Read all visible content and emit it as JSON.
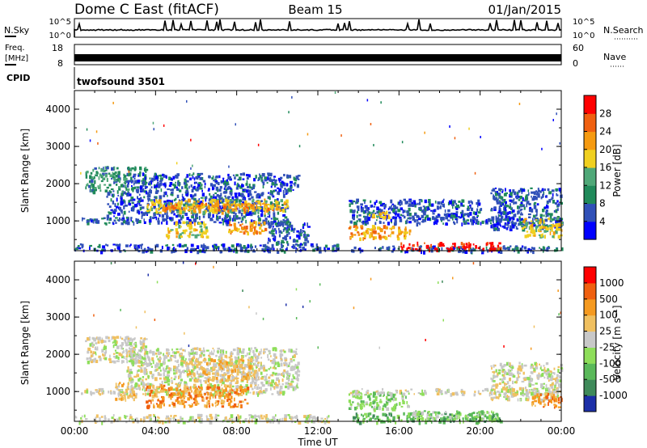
{
  "header": {
    "station": "Dome C East (fitACF)",
    "beam": "Beam 15",
    "date": "01/Jan/2015"
  },
  "strips": {
    "nsky": {
      "label": "N.Sky",
      "ticks": [
        "10^5",
        "10^0"
      ]
    },
    "nsearch": {
      "label": "N.Search",
      "ticks": [
        "10^5",
        "10^0"
      ]
    },
    "freq": {
      "label_line1": "Freq.",
      "label_line2": "[MHz]",
      "ticks": [
        "18",
        "8"
      ]
    },
    "nave": {
      "label": "Nave",
      "ticks": [
        "60",
        "0"
      ]
    },
    "cpid": {
      "label": "CPID",
      "value": "twofsound 3501"
    }
  },
  "colors": {
    "power": [
      "#0000ff",
      "#3050b8",
      "#208a5a",
      "#4fa878",
      "#f0d020",
      "#f59a10",
      "#f06010",
      "#ff0000"
    ],
    "velocity": [
      "#1c2fa8",
      "#3f8a5a",
      "#5ab95a",
      "#8ede5a",
      "#c8c8c8",
      "#f0c060",
      "#f59a20",
      "#f06010",
      "#ff0000"
    ],
    "ground_scatter": "#c8c8c8"
  },
  "chart_data": [
    {
      "type": "heatmap",
      "quantity": "power",
      "xlabel": "",
      "ylabel": "Slant Range [km]",
      "x_range_hours": [
        0,
        24
      ],
      "ylim": [
        200,
        4500
      ],
      "y_ticks": [
        "4000",
        "3000",
        "2000",
        "1000"
      ],
      "colorbar": {
        "label": "Power [dB]",
        "tick_labels": [
          "28",
          "24",
          "20",
          "16",
          "12",
          "8",
          "4"
        ]
      },
      "regions": [
        {
          "t0": 0.5,
          "t1": 3.5,
          "r0": 1800,
          "r1": 2500,
          "level": 2
        },
        {
          "t0": 0.0,
          "t1": 13.0,
          "r0": 200,
          "r1": 400,
          "level": 1
        },
        {
          "t0": 0.3,
          "t1": 10.5,
          "r0": 950,
          "r1": 1100,
          "level": 1
        },
        {
          "t0": 1.5,
          "t1": 10.5,
          "r0": 1100,
          "r1": 1800,
          "level": 1
        },
        {
          "t0": 2.5,
          "t1": 11.0,
          "r0": 1800,
          "r1": 2300,
          "level": 1
        },
        {
          "t0": 3.5,
          "t1": 10.5,
          "r0": 1250,
          "r1": 1600,
          "level": 4
        },
        {
          "t0": 4.0,
          "t1": 10.0,
          "r0": 1300,
          "r1": 1500,
          "level": 5
        },
        {
          "t0": 4.5,
          "t1": 6.5,
          "r0": 600,
          "r1": 1000,
          "level": 4
        },
        {
          "t0": 7.5,
          "t1": 9.5,
          "r0": 700,
          "r1": 1000,
          "level": 5
        },
        {
          "t0": 9.5,
          "t1": 11.5,
          "r0": 400,
          "r1": 1000,
          "level": 1
        },
        {
          "t0": 13.5,
          "t1": 24.0,
          "r0": 200,
          "r1": 350,
          "level": 1
        },
        {
          "t0": 13.5,
          "t1": 24.0,
          "r0": 950,
          "r1": 1100,
          "level": 1
        },
        {
          "t0": 13.5,
          "t1": 20.0,
          "r0": 1100,
          "r1": 1600,
          "level": 1
        },
        {
          "t0": 13.5,
          "t1": 16.5,
          "r0": 550,
          "r1": 900,
          "level": 5
        },
        {
          "t0": 16.0,
          "t1": 21.0,
          "r0": 250,
          "r1": 450,
          "level": 7
        },
        {
          "t0": 14.5,
          "t1": 15.5,
          "r0": 1100,
          "r1": 1300,
          "level": 4
        },
        {
          "t0": 20.5,
          "t1": 24.0,
          "r0": 800,
          "r1": 1900,
          "level": 1
        },
        {
          "t0": 22.0,
          "t1": 24.0,
          "r0": 600,
          "r1": 1100,
          "level": 4
        }
      ]
    },
    {
      "type": "heatmap",
      "quantity": "velocity",
      "xlabel": "Time UT",
      "ylabel": "Slant Range [km]",
      "x_range_hours": [
        0,
        24
      ],
      "ylim": [
        200,
        4500
      ],
      "x_ticks": [
        "00:00",
        "04:00",
        "08:00",
        "12:00",
        "16:00",
        "20:00",
        "00:00"
      ],
      "y_ticks": [
        "4000",
        "3000",
        "2000",
        "1000"
      ],
      "colorbar": {
        "label": "Velocity [m s⁻¹]",
        "tick_labels": [
          "1000",
          "500",
          "100",
          "25",
          "-25",
          "-100",
          "-500",
          "-1000"
        ]
      },
      "regions": [
        {
          "t0": 0.5,
          "t1": 3.5,
          "r0": 1800,
          "r1": 2500,
          "level": 4
        },
        {
          "t0": 0.0,
          "t1": 12.5,
          "r0": 200,
          "r1": 400,
          "level": 4
        },
        {
          "t0": 0.3,
          "t1": 10.5,
          "r0": 950,
          "r1": 1100,
          "level": 4
        },
        {
          "t0": 2.5,
          "t1": 11.0,
          "r0": 1100,
          "r1": 2200,
          "level": 4
        },
        {
          "t0": 3.5,
          "t1": 8.5,
          "r0": 600,
          "r1": 1200,
          "level": 6
        },
        {
          "t0": 5.5,
          "t1": 9.0,
          "r0": 1300,
          "r1": 2000,
          "level": 5
        },
        {
          "t0": 2.0,
          "t1": 3.0,
          "r0": 800,
          "r1": 1300,
          "level": 5
        },
        {
          "t0": 13.5,
          "t1": 21.0,
          "r0": 200,
          "r1": 450,
          "level": 2
        },
        {
          "t0": 13.5,
          "t1": 16.5,
          "r0": 550,
          "r1": 1000,
          "level": 3
        },
        {
          "t0": 13.5,
          "t1": 24.0,
          "r0": 950,
          "r1": 1100,
          "level": 4
        },
        {
          "t0": 16.5,
          "t1": 21.0,
          "r0": 250,
          "r1": 500,
          "level": 3
        },
        {
          "t0": 20.5,
          "t1": 24.0,
          "r0": 800,
          "r1": 1800,
          "level": 4
        },
        {
          "t0": 22.5,
          "t1": 24.0,
          "r0": 600,
          "r1": 1000,
          "level": 6
        }
      ]
    }
  ]
}
